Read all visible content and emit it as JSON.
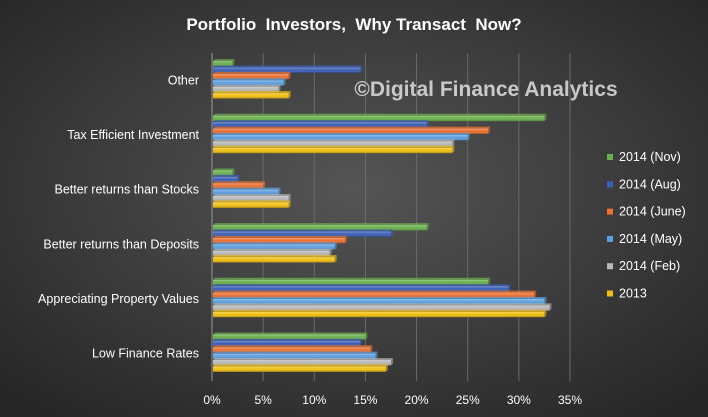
{
  "chart_data": {
    "type": "bar",
    "orientation": "horizontal",
    "title": "Portfolio  Investors,  Why Transact  Now?",
    "watermark": "©Digital Finance Analytics",
    "categories": [
      "Other",
      "Tax Efficient Investment",
      "Better returns than Stocks",
      "Better returns than Deposits",
      "Appreciating Property Values",
      "Low Finance Rates"
    ],
    "series": [
      {
        "name": "2014 (Nov)",
        "color": "#6ab04c",
        "values": [
          2,
          32.5,
          2,
          21,
          27,
          15
        ]
      },
      {
        "name": "2014 (Aug)",
        "color": "#3a5fb8",
        "values": [
          14.5,
          21,
          2.5,
          17.5,
          29,
          14.5
        ]
      },
      {
        "name": "2014 (June)",
        "color": "#ec7030",
        "values": [
          7.5,
          27,
          5,
          13,
          31.5,
          15.5
        ]
      },
      {
        "name": "2014 (May)",
        "color": "#5ba0e0",
        "values": [
          7,
          25,
          6.5,
          12,
          32.5,
          16
        ]
      },
      {
        "name": "2014 (Feb)",
        "color": "#b8b8b8",
        "values": [
          6.5,
          23.5,
          7.5,
          11.5,
          33,
          17.5
        ]
      },
      {
        "name": "2013",
        "color": "#f2c010",
        "values": [
          7.5,
          23.5,
          7.5,
          12,
          32.5,
          17
        ]
      }
    ],
    "xlim": [
      0,
      35
    ],
    "xticks": [
      0,
      5,
      10,
      15,
      20,
      25,
      30,
      35
    ],
    "tick_format": "%",
    "grid": true,
    "legend": "right"
  }
}
